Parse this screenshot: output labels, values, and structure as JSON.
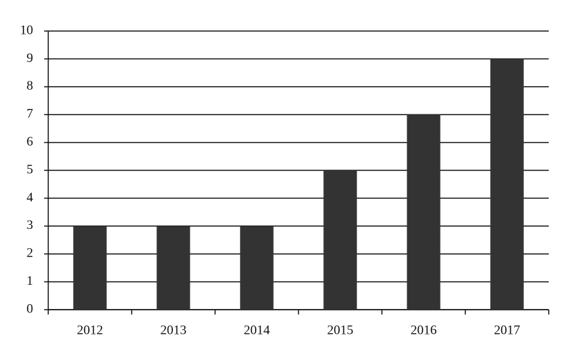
{
  "chart_data": {
    "type": "bar",
    "categories": [
      "2012",
      "2013",
      "2014",
      "2015",
      "2016",
      "2017"
    ],
    "values": [
      3,
      3,
      3,
      5,
      7,
      9
    ],
    "color": "#333333",
    "ylim": [
      0,
      10
    ],
    "yticks": [
      0,
      1,
      2,
      3,
      4,
      5,
      6,
      7,
      8,
      9,
      10
    ],
    "grid": true
  }
}
